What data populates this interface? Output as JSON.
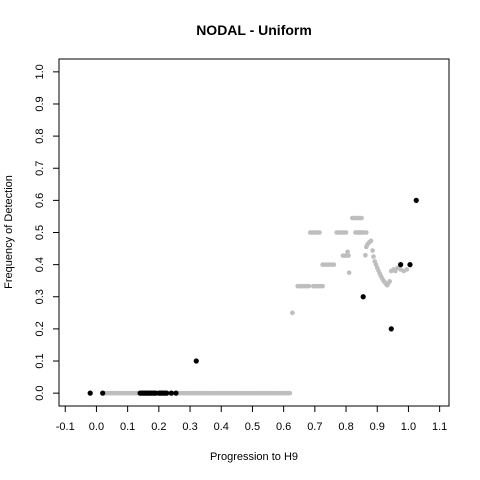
{
  "chart_data": {
    "type": "scatter",
    "title": "NODAL - Uniform",
    "xlabel": "Progression to H9",
    "ylabel": "Frequency of Detection",
    "xlim": [
      -0.12,
      1.13
    ],
    "ylim": [
      -0.04,
      1.04
    ],
    "x_ticks": [
      "-0.1",
      "0.0",
      "0.1",
      "0.2",
      "0.3",
      "0.4",
      "0.5",
      "0.6",
      "0.7",
      "0.8",
      "0.9",
      "1.0",
      "1.1"
    ],
    "y_ticks": [
      "0.0",
      "0.1",
      "0.2",
      "0.3",
      "0.4",
      "0.5",
      "0.6",
      "0.7",
      "0.8",
      "0.9",
      "1.0"
    ],
    "grid": false,
    "colors": {
      "observed": "#000000",
      "smoothed": "#bebebe"
    },
    "series": [
      {
        "color": "#bebebe",
        "segments": [
          {
            "x0": 0.02,
            "x1": 0.62,
            "step": 0.006,
            "y": 0.0
          },
          {
            "x0": 0.645,
            "x1": 0.685,
            "step": 0.006,
            "y": 0.333
          },
          {
            "x0": 0.695,
            "x1": 0.73,
            "step": 0.006,
            "y": 0.333
          },
          {
            "x0": 0.685,
            "x1": 0.715,
            "step": 0.006,
            "y": 0.5
          },
          {
            "x0": 0.725,
            "x1": 0.765,
            "step": 0.006,
            "y": 0.4
          },
          {
            "x0": 0.77,
            "x1": 0.8,
            "step": 0.006,
            "y": 0.5
          },
          {
            "x0": 0.79,
            "x1": 0.81,
            "step": 0.006,
            "y": 0.428
          },
          {
            "x0": 0.82,
            "x1": 0.85,
            "step": 0.006,
            "y": 0.545
          },
          {
            "x0": 0.835,
            "x1": 0.865,
            "step": 0.006,
            "y": 0.5
          },
          {
            "x0": 0.83,
            "x1": 0.85,
            "step": 0.006,
            "y": 0.5
          }
        ],
        "points": [
          {
            "x": 0.628,
            "y": 0.25
          },
          {
            "x": 0.81,
            "y": 0.375
          },
          {
            "x": 0.805,
            "y": 0.44
          },
          {
            "x": 0.862,
            "y": 0.429
          },
          {
            "x": 0.865,
            "y": 0.455
          },
          {
            "x": 0.868,
            "y": 0.462
          },
          {
            "x": 0.872,
            "y": 0.467
          },
          {
            "x": 0.876,
            "y": 0.471
          },
          {
            "x": 0.88,
            "y": 0.474
          },
          {
            "x": 0.885,
            "y": 0.444
          },
          {
            "x": 0.888,
            "y": 0.425
          },
          {
            "x": 0.892,
            "y": 0.41
          },
          {
            "x": 0.896,
            "y": 0.4
          },
          {
            "x": 0.9,
            "y": 0.39
          },
          {
            "x": 0.904,
            "y": 0.381
          },
          {
            "x": 0.908,
            "y": 0.372
          },
          {
            "x": 0.912,
            "y": 0.364
          },
          {
            "x": 0.916,
            "y": 0.357
          },
          {
            "x": 0.92,
            "y": 0.35
          },
          {
            "x": 0.924,
            "y": 0.345
          },
          {
            "x": 0.928,
            "y": 0.34
          },
          {
            "x": 0.932,
            "y": 0.336
          },
          {
            "x": 0.936,
            "y": 0.342
          },
          {
            "x": 0.94,
            "y": 0.348
          },
          {
            "x": 0.945,
            "y": 0.38
          },
          {
            "x": 0.952,
            "y": 0.385
          },
          {
            "x": 0.958,
            "y": 0.38
          },
          {
            "x": 0.965,
            "y": 0.39
          },
          {
            "x": 0.975,
            "y": 0.385
          },
          {
            "x": 0.985,
            "y": 0.38
          },
          {
            "x": 0.995,
            "y": 0.385
          }
        ]
      },
      {
        "color": "#000000",
        "points": [
          {
            "x": -0.02,
            "y": 0.0
          },
          {
            "x": 0.02,
            "y": 0.0
          },
          {
            "x": 0.14,
            "y": 0.0
          },
          {
            "x": 0.145,
            "y": 0.0
          },
          {
            "x": 0.15,
            "y": 0.0
          },
          {
            "x": 0.155,
            "y": 0.0
          },
          {
            "x": 0.16,
            "y": 0.0
          },
          {
            "x": 0.165,
            "y": 0.0
          },
          {
            "x": 0.17,
            "y": 0.0
          },
          {
            "x": 0.175,
            "y": 0.0
          },
          {
            "x": 0.18,
            "y": 0.0
          },
          {
            "x": 0.185,
            "y": 0.0
          },
          {
            "x": 0.19,
            "y": 0.0
          },
          {
            "x": 0.2,
            "y": 0.0
          },
          {
            "x": 0.205,
            "y": 0.0
          },
          {
            "x": 0.21,
            "y": 0.0
          },
          {
            "x": 0.215,
            "y": 0.0
          },
          {
            "x": 0.22,
            "y": 0.0
          },
          {
            "x": 0.225,
            "y": 0.0
          },
          {
            "x": 0.24,
            "y": 0.0
          },
          {
            "x": 0.255,
            "y": 0.0
          },
          {
            "x": 0.32,
            "y": 0.1
          },
          {
            "x": 0.855,
            "y": 0.3
          },
          {
            "x": 0.945,
            "y": 0.2
          },
          {
            "x": 0.975,
            "y": 0.4
          },
          {
            "x": 1.005,
            "y": 0.4
          },
          {
            "x": 1.025,
            "y": 0.6
          }
        ]
      }
    ]
  }
}
